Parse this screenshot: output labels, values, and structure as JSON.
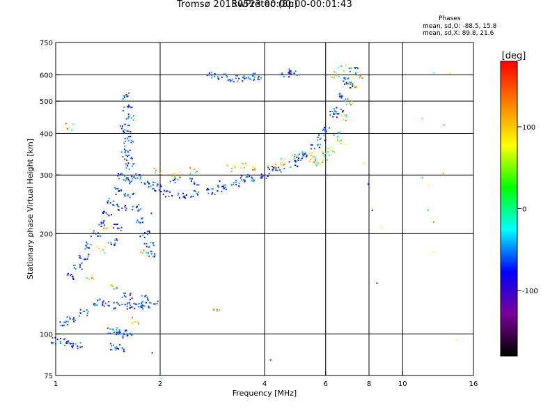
{
  "chart_data": {
    "type": "scatter",
    "title": "Tromsø 20150523 00:00:00-00:01:43",
    "subtitle": "RwPretec (8p)",
    "xlabel": "Frequency [MHz]",
    "ylabel": "Stationary phase Virtual Height [km]",
    "x_scale": "log",
    "y_scale": "log",
    "xlim": [
      1,
      16
    ],
    "ylim": [
      75,
      750
    ],
    "x_ticks": [
      1,
      2,
      4,
      6,
      8,
      10,
      16
    ],
    "y_ticks": [
      75,
      100,
      200,
      300,
      400,
      500,
      600,
      750
    ],
    "x_gridlines": [
      2,
      4,
      6,
      8,
      10
    ],
    "y_gridlines": [
      100,
      200,
      300,
      400,
      500,
      600
    ],
    "grid": true,
    "stats": {
      "heading": "Phases",
      "o_mode": "mean, sd,O: -88.5, 15.8",
      "x_mode": "mean, sd,X:  89.8, 21.6"
    },
    "colorbar": {
      "label": "[deg]",
      "range": [
        -180,
        180
      ],
      "ticks": [
        100,
        0,
        -100
      ],
      "colors": [
        "#000000",
        "#7a0099",
        "#0000ff",
        "#00ffff",
        "#00ff00",
        "#ffff00",
        "#ff8000",
        "#ff0000"
      ]
    },
    "series": [
      {
        "values": [
          [
            1.6,
            520
          ],
          [
            1.6,
            480
          ],
          [
            1.62,
            450
          ],
          [
            1.58,
            420
          ],
          [
            1.6,
            400
          ],
          [
            1.62,
            380
          ],
          [
            1.58,
            360
          ],
          [
            1.6,
            340
          ],
          [
            1.63,
            320
          ],
          [
            1.55,
            300
          ],
          [
            1.6,
            290
          ],
          [
            1.5,
            270
          ],
          [
            1.45,
            250
          ],
          [
            1.4,
            230
          ],
          [
            1.35,
            215
          ],
          [
            1.3,
            200
          ],
          [
            1.25,
            185
          ],
          [
            1.2,
            170
          ],
          [
            1.15,
            160
          ],
          [
            1.1,
            150
          ],
          [
            1.5,
            210
          ],
          [
            1.45,
            190
          ],
          [
            1.55,
            240
          ],
          [
            1.62,
            260
          ],
          [
            1.7,
            240
          ],
          [
            1.75,
            220
          ],
          [
            1.8,
            200
          ],
          [
            1.85,
            185
          ],
          [
            1.9,
            175
          ],
          [
            1.7,
            300
          ],
          [
            1.8,
            290
          ],
          [
            1.9,
            280
          ],
          [
            1.95,
            275
          ],
          [
            2.1,
            265
          ],
          [
            2.3,
            262
          ],
          [
            2.5,
            264
          ],
          [
            2.8,
            270
          ],
          [
            3.0,
            275
          ],
          [
            3.3,
            285
          ],
          [
            3.6,
            292
          ],
          [
            4.0,
            300
          ],
          [
            4.4,
            310
          ],
          [
            4.8,
            325
          ],
          [
            5.2,
            345
          ],
          [
            5.6,
            370
          ],
          [
            6.0,
            410
          ],
          [
            6.3,
            460
          ],
          [
            6.6,
            520
          ],
          [
            6.9,
            580
          ],
          [
            7.2,
            620
          ],
          [
            2.2,
            290
          ],
          [
            2.5,
            288
          ],
          [
            3.0,
            282
          ],
          [
            3.5,
            295
          ],
          [
            4.2,
            315
          ],
          [
            5.0,
            340
          ],
          [
            5.8,
            390
          ],
          [
            6.5,
            470
          ],
          [
            7.0,
            560
          ],
          [
            1.3,
            125
          ],
          [
            1.4,
            123
          ],
          [
            1.5,
            122
          ],
          [
            1.6,
            122
          ],
          [
            1.7,
            121
          ],
          [
            1.8,
            122
          ],
          [
            1.9,
            123
          ],
          [
            1.6,
            130
          ],
          [
            1.8,
            128
          ],
          [
            1.05,
            108
          ],
          [
            1.1,
            112
          ],
          [
            1.2,
            116
          ],
          [
            1.0,
            96
          ],
          [
            1.05,
            95
          ],
          [
            1.1,
            94
          ],
          [
            1.15,
            93
          ],
          [
            1.45,
            103
          ],
          [
            1.5,
            102
          ],
          [
            1.55,
            101
          ],
          [
            1.6,
            100
          ],
          [
            1.48,
            92
          ],
          [
            1.52,
            91
          ],
          [
            3.2,
            588
          ],
          [
            3.4,
            590
          ],
          [
            3.6,
            592
          ],
          [
            3.8,
            595
          ],
          [
            3.0,
            597
          ],
          [
            2.8,
            600
          ],
          [
            4.6,
            605
          ],
          [
            4.8,
            612
          ]
        ]
      },
      {
        "values": [
          [
            3.5,
            320
          ],
          [
            3.8,
            318
          ],
          [
            4.2,
            322
          ],
          [
            4.5,
            330
          ],
          [
            4.9,
            340
          ],
          [
            5.3,
            345
          ],
          [
            5.6,
            335
          ],
          [
            5.9,
            340
          ],
          [
            6.2,
            360
          ],
          [
            6.5,
            400
          ],
          [
            6.8,
            450
          ],
          [
            7.0,
            500
          ],
          [
            7.2,
            560
          ],
          [
            7.4,
            600
          ],
          [
            6.7,
            630
          ],
          [
            6.4,
            600
          ],
          [
            5.5,
            330
          ],
          [
            5.7,
            325
          ],
          [
            6.0,
            350
          ],
          [
            6.6,
            380
          ],
          [
            3.2,
            315
          ],
          [
            2.5,
            310
          ],
          [
            2.2,
            300
          ],
          [
            1.95,
            310
          ],
          [
            1.4,
            210
          ],
          [
            1.35,
            180
          ],
          [
            1.25,
            150
          ],
          [
            1.45,
            140
          ],
          [
            1.7,
            110
          ],
          [
            1.8,
            175
          ],
          [
            1.1,
            420
          ],
          [
            2.9,
            120
          ]
        ]
      },
      {
        "values": [
          [
            7.8,
            320
          ],
          [
            7.9,
            280
          ],
          [
            8.1,
            240
          ],
          [
            8.2,
            140
          ],
          [
            8.5,
            210
          ],
          [
            12.0,
            610
          ],
          [
            12.0,
            280
          ],
          [
            12.0,
            220
          ],
          [
            12.2,
            180
          ],
          [
            14.0,
            600
          ],
          [
            12.8,
            300
          ],
          [
            13.5,
            420
          ],
          [
            11.5,
            450
          ],
          [
            11.0,
            290
          ],
          [
            11.8,
            240
          ],
          [
            14.5,
            95
          ],
          [
            4.1,
            85
          ],
          [
            2.05,
            75
          ],
          [
            1.93,
            90
          ],
          [
            1.93,
            230
          ],
          [
            6.4,
            620
          ]
        ]
      }
    ]
  }
}
